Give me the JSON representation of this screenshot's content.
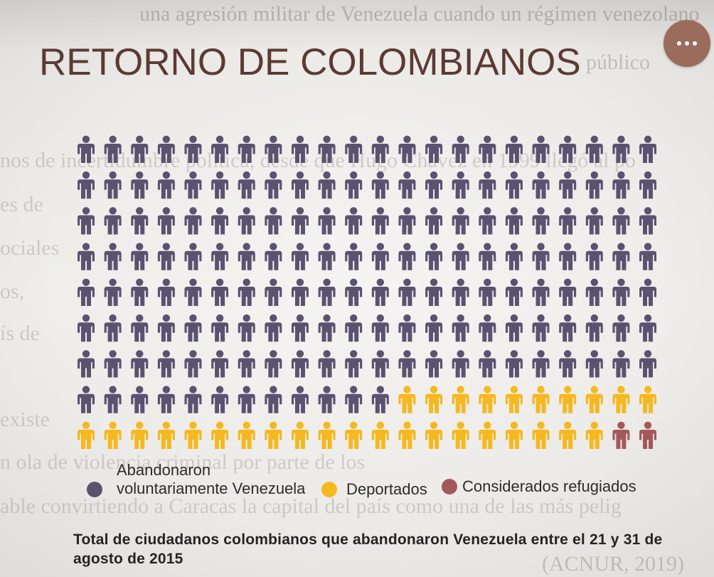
{
  "ui": {
    "more_button": {
      "icon": "more-horizontal-icon",
      "color": "#9b6b5c"
    }
  },
  "background_text": [
    "una agresión militar de Venezuela cuando un régimen venezolano",
    "público",
    "nos de incertidumbre política, desde que Hugo Chávez en 1999 llegó al po",
    "es de",
    "ociales",
    "os,",
    "ís de",
    "existe",
    "n ola de violencia criminal por parte de los",
    "able convirtiendo a Caracas la capital del país como una de las más pelig",
    "(ACNUR, 2019)"
  ],
  "chart_data": {
    "type": "bar",
    "title": "RETORNO DE COLOMBIANOS",
    "mark_icon": "person-icon",
    "categories": [
      "Abandonaron voluntariamente Venezuela",
      "Deportados",
      "Considerados refugiados"
    ],
    "values": [
      166,
      30,
      2
    ],
    "colors": [
      "#5a5370",
      "#f5b820",
      "#a3585a"
    ],
    "title_color": "#5c3a33",
    "legend": "bottom",
    "caption": "Total de ciudadanos colombianos que abandonaron Venezuela entre el 21 y 31 de agosto de 2015"
  }
}
